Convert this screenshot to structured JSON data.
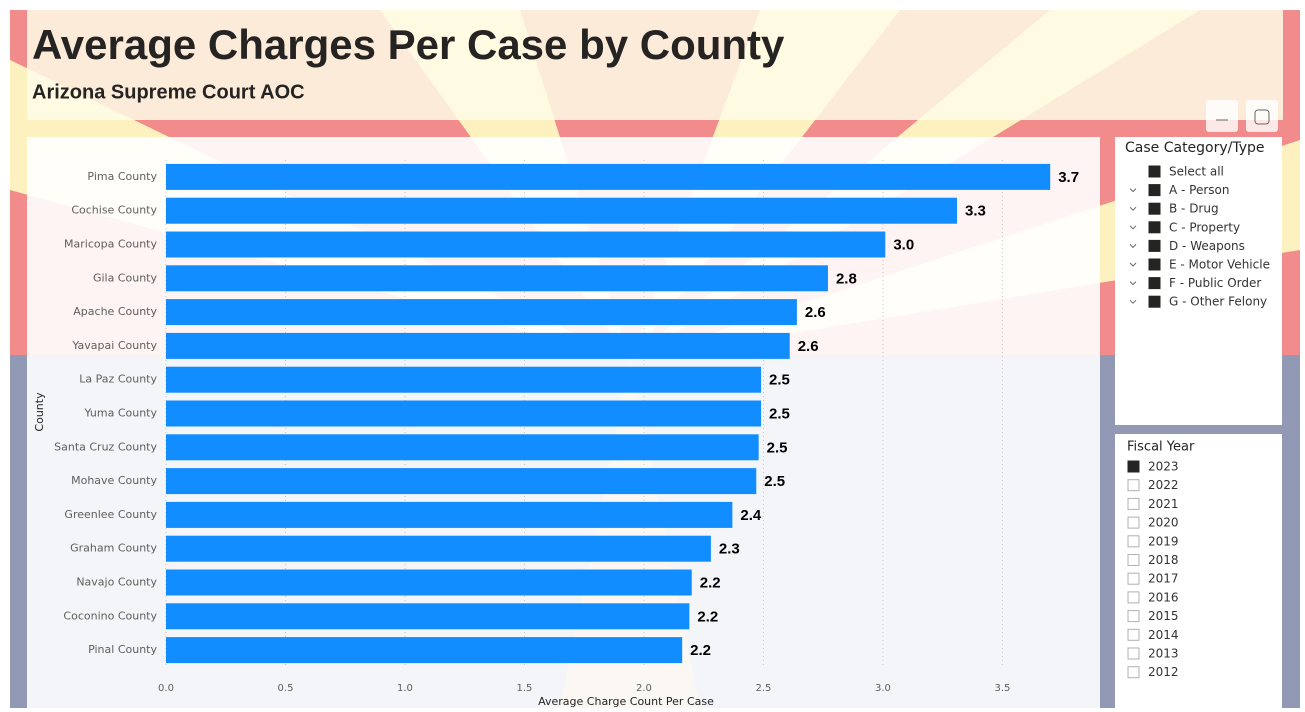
{
  "header": {
    "title": "Average Charges Per Case by County",
    "subtitle": "Arizona Supreme Court AOC"
  },
  "chart_data": {
    "type": "bar",
    "orientation": "horizontal",
    "color": "#118dff",
    "grid": true,
    "x_label": "Average Charge Count Per Case",
    "y_label": "County",
    "categories": [
      "Pima County",
      "Cochise County",
      "Maricopa County",
      "Gila County",
      "Apache County",
      "Yavapai County",
      "La Paz County",
      "Yuma County",
      "Santa Cruz County",
      "Mohave County",
      "Greenlee County",
      "Graham County",
      "Navajo County",
      "Coconino County",
      "Pinal County"
    ],
    "values": [
      3.7,
      3.31,
      3.01,
      2.77,
      2.64,
      2.61,
      2.49,
      2.49,
      2.48,
      2.47,
      2.37,
      2.28,
      2.2,
      2.19,
      2.16
    ],
    "value_labels": [
      "3.7",
      "3.3",
      "3.0",
      "2.8",
      "2.6",
      "2.6",
      "2.5",
      "2.5",
      "2.5",
      "2.5",
      "2.4",
      "2.3",
      "2.2",
      "2.2",
      "2.2"
    ],
    "xlim": [
      0,
      3.9
    ],
    "xticks": [
      {
        "value": 0,
        "label": "0.0"
      },
      0.5,
      {
        "value": 1,
        "label": "1.0"
      },
      1.5,
      {
        "value": 2,
        "label": "2.0"
      },
      2.5,
      {
        "value": 3,
        "label": "3.0"
      },
      3.5
    ]
  },
  "case_category_slicer": {
    "title": "Case Category/Type",
    "items": [
      {
        "label": "Select all",
        "checked": true
      },
      {
        "label": "A - Person",
        "checked": true
      },
      {
        "label": "B - Drug",
        "checked": true
      },
      {
        "label": "C - Property",
        "checked": true
      },
      {
        "label": "D - Weapons",
        "checked": true
      },
      {
        "label": "E - Motor Vehicle",
        "checked": true
      },
      {
        "label": "F - Public Order",
        "checked": true
      },
      {
        "label": "G - Other Felony",
        "checked": true
      }
    ]
  },
  "fiscal_year_slicer": {
    "title": "Fiscal Year",
    "items": [
      {
        "label": "2023",
        "checked": true
      },
      {
        "label": "2022",
        "checked": false
      },
      {
        "label": "2021",
        "checked": false
      },
      {
        "label": "2020",
        "checked": false
      },
      {
        "label": "2019",
        "checked": false
      },
      {
        "label": "2018",
        "checked": false
      },
      {
        "label": "2017",
        "checked": false
      },
      {
        "label": "2016",
        "checked": false
      },
      {
        "label": "2015",
        "checked": false
      },
      {
        "label": "2014",
        "checked": false
      },
      {
        "label": "2013",
        "checked": false
      },
      {
        "label": "2012",
        "checked": false
      }
    ]
  }
}
